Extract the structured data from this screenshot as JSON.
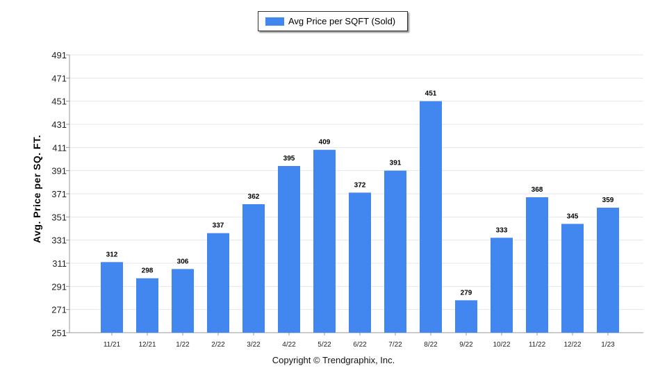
{
  "chart_data": {
    "type": "bar",
    "categories": [
      "11/21",
      "12/21",
      "1/22",
      "2/22",
      "3/22",
      "4/22",
      "5/22",
      "6/22",
      "7/22",
      "8/22",
      "9/22",
      "10/22",
      "11/22",
      "12/22",
      "1/23"
    ],
    "series": [
      {
        "name": "Avg Price per SQFT (Sold)",
        "values": [
          312,
          298,
          306,
          337,
          362,
          395,
          409,
          372,
          391,
          451,
          279,
          333,
          368,
          345,
          359
        ]
      }
    ],
    "ylabel": "Avg. Price per SQ. FT.",
    "xlabel": "",
    "ylim": [
      251,
      491
    ],
    "yticks": [
      251,
      271,
      291,
      311,
      331,
      351,
      371,
      391,
      411,
      431,
      451,
      471,
      491
    ],
    "grid": true,
    "legend_position": "top-center",
    "bar_color": "#4287f0"
  },
  "footer": {
    "copyright": "Copyright © Trendgraphix, Inc."
  }
}
